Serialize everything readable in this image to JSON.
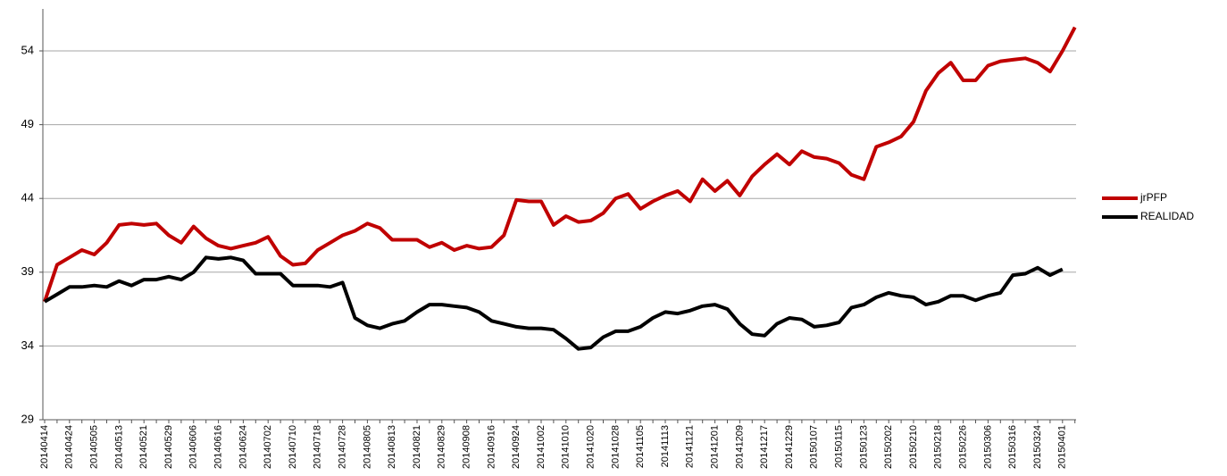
{
  "chart_data": {
    "type": "line",
    "categories": [
      "20140414",
      null,
      "20140424",
      null,
      "20140505",
      null,
      "20140513",
      null,
      "20140521",
      null,
      "20140529",
      null,
      "20140606",
      null,
      "20140616",
      null,
      "20140624",
      null,
      "20140702",
      null,
      "20140710",
      null,
      "20140718",
      null,
      "20140728",
      null,
      "20140805",
      null,
      "20140813",
      null,
      "20140821",
      null,
      "20140829",
      null,
      "20140908",
      null,
      "20140916",
      null,
      "20140924",
      null,
      "20141002",
      null,
      "20141010",
      null,
      "20141020",
      null,
      "20141028",
      null,
      "20141105",
      null,
      "20141113",
      null,
      "20141121",
      null,
      "20141201",
      null,
      "20141209",
      null,
      "20141217",
      null,
      "20141229",
      null,
      "20150107",
      null,
      "20150115",
      null,
      "20150123",
      null,
      "20150202",
      null,
      "20150210",
      null,
      "20150218",
      null,
      "20150226",
      null,
      "20150306",
      null,
      "20150316",
      null,
      "20150324",
      null,
      "20150401",
      null
    ],
    "series": [
      {
        "name": "jrPFP",
        "color": "#c00000",
        "values": [
          37.0,
          39.5,
          40.0,
          40.5,
          40.2,
          41.0,
          42.2,
          42.3,
          42.2,
          42.3,
          41.5,
          41.0,
          42.1,
          41.3,
          40.8,
          40.6,
          40.8,
          41.0,
          41.4,
          40.1,
          39.5,
          39.6,
          40.5,
          41.0,
          41.5,
          41.8,
          42.3,
          42.0,
          41.2,
          41.2,
          41.2,
          40.7,
          41.0,
          40.5,
          40.8,
          40.6,
          40.7,
          41.5,
          43.9,
          43.8,
          43.8,
          42.2,
          42.8,
          42.4,
          42.5,
          43.0,
          44.0,
          44.3,
          43.3,
          43.8,
          44.2,
          44.5,
          43.8,
          45.3,
          44.5,
          45.2,
          44.2,
          45.5,
          46.3,
          47.0,
          46.3,
          47.2,
          46.8,
          46.7,
          46.4,
          45.6,
          45.3,
          47.5,
          47.8,
          48.2,
          49.2,
          51.3,
          52.5,
          53.2,
          52.0,
          52.0,
          53.0,
          53.3,
          53.4,
          53.5,
          53.2,
          52.6,
          54.0,
          55.6
        ]
      },
      {
        "name": "REALIDAD",
        "color": "#000000",
        "values": [
          37.0,
          37.5,
          38.0,
          38.0,
          38.1,
          38.0,
          38.4,
          38.1,
          38.5,
          38.5,
          38.7,
          38.5,
          39.0,
          40.0,
          39.9,
          40.0,
          39.8,
          38.9,
          38.9,
          38.9,
          38.1,
          38.1,
          38.1,
          38.0,
          38.3,
          35.9,
          35.4,
          35.2,
          35.5,
          35.7,
          36.3,
          36.8,
          36.8,
          36.7,
          36.6,
          36.3,
          35.7,
          35.5,
          35.3,
          35.2,
          35.2,
          35.1,
          34.5,
          33.8,
          33.9,
          34.6,
          35.0,
          35.0,
          35.3,
          35.9,
          36.3,
          36.2,
          36.4,
          36.7,
          36.8,
          36.5,
          35.5,
          34.8,
          34.7,
          35.5,
          35.9,
          35.8,
          35.3,
          35.4,
          35.6,
          36.6,
          36.8,
          37.3,
          37.6,
          37.4,
          37.3,
          36.8,
          37.0,
          37.4,
          37.4,
          37.1,
          37.4,
          37.6,
          38.8,
          38.9,
          39.3,
          38.8,
          39.2,
          null
        ]
      }
    ],
    "ylim": [
      29,
      56
    ],
    "yticks": [
      29,
      34,
      39,
      44,
      49,
      54
    ],
    "grid": true,
    "legend": "right"
  }
}
